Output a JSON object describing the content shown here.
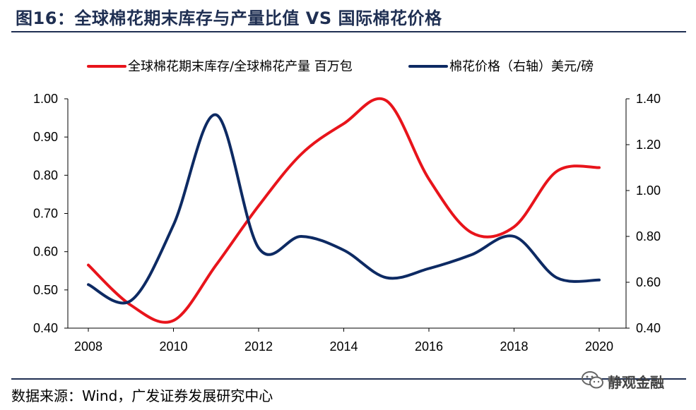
{
  "header": {
    "title": "图16：全球棉花期末库存与产量比值 VS 国际棉花价格"
  },
  "footer": {
    "source": "数据来源：Wind，广发证券发展研究中心",
    "watermark": "静观金融"
  },
  "colors": {
    "ratio": "#e8141b",
    "price": "#0d2a63",
    "title": "#1f2f52"
  },
  "chart_data": {
    "type": "line",
    "x_ticks": [
      "2008",
      "2010",
      "2012",
      "2014",
      "2016",
      "2018",
      "2020"
    ],
    "xlim": [
      2008,
      2020.5
    ],
    "y_left": {
      "ticks": [
        "0.40",
        "0.50",
        "0.60",
        "0.70",
        "0.80",
        "0.90",
        "1.00"
      ],
      "ylim": [
        0.4,
        1.0
      ]
    },
    "y_right": {
      "ticks": [
        "0.40",
        "0.60",
        "0.80",
        "1.00",
        "1.20",
        "1.40"
      ],
      "ylim": [
        0.4,
        1.4
      ]
    },
    "legend_position": "top",
    "grid": false,
    "series": [
      {
        "name": "全球棉花期末库存/全球棉花产量 百万包",
        "axis": "left",
        "color": "#e8141b",
        "x": [
          2008.0,
          2009.0,
          2010.0,
          2011.0,
          2012.0,
          2013.0,
          2014.0,
          2015.0,
          2016.0,
          2017.0,
          2018.0,
          2019.0,
          2020.0
        ],
        "values": [
          0.565,
          0.46,
          0.42,
          0.565,
          0.72,
          0.855,
          0.935,
          0.995,
          0.79,
          0.65,
          0.665,
          0.81,
          0.82
        ]
      },
      {
        "name": "棉花价格（右轴）美元/磅",
        "axis": "right",
        "color": "#0d2a63",
        "x": [
          2008.0,
          2009.0,
          2010.0,
          2011.0,
          2012.0,
          2013.0,
          2014.0,
          2015.0,
          2016.0,
          2017.0,
          2018.0,
          2019.0,
          2020.0
        ],
        "values": [
          0.59,
          0.52,
          0.85,
          1.33,
          0.75,
          0.8,
          0.74,
          0.62,
          0.66,
          0.72,
          0.8,
          0.62,
          0.61
        ]
      }
    ]
  }
}
